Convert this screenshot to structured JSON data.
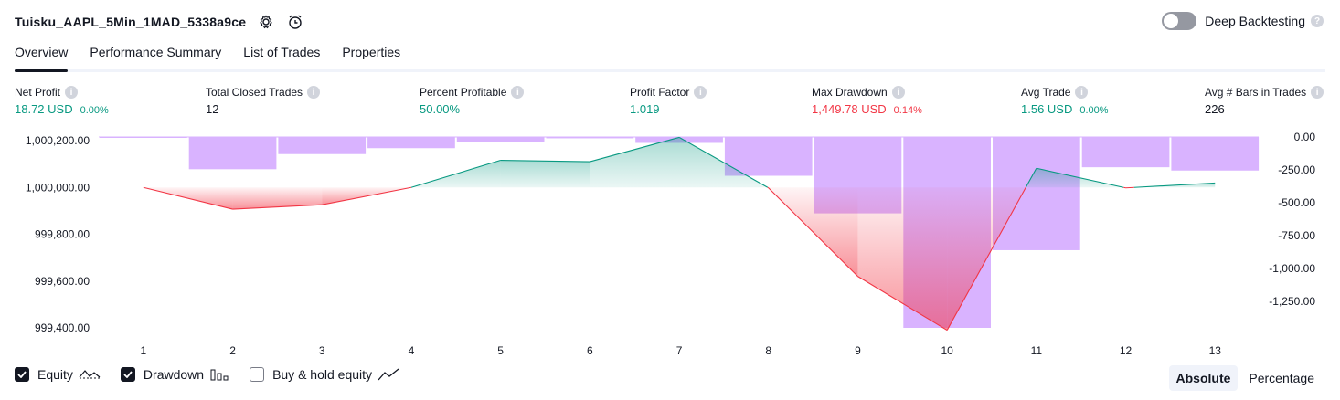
{
  "header": {
    "title": "Tuisku_AAPL_5Min_1MAD_5338a9ce",
    "deep_backtesting_label": "Deep Backtesting",
    "help_glyph": "?"
  },
  "tabs": [
    {
      "label": "Overview",
      "active": true
    },
    {
      "label": "Performance Summary",
      "active": false
    },
    {
      "label": "List of Trades",
      "active": false
    },
    {
      "label": "Properties",
      "active": false
    }
  ],
  "metrics": {
    "net_profit": {
      "label": "Net Profit",
      "value": "18.72 USD",
      "pct": "0.00%"
    },
    "total_closed_trades": {
      "label": "Total Closed Trades",
      "value": "12"
    },
    "percent_profitable": {
      "label": "Percent Profitable",
      "value": "50.00%"
    },
    "profit_factor": {
      "label": "Profit Factor",
      "value": "1.019"
    },
    "max_drawdown": {
      "label": "Max Drawdown",
      "value": "1,449.78 USD",
      "pct": "0.14%"
    },
    "avg_trade": {
      "label": "Avg Trade",
      "value": "1.56 USD",
      "pct": "0.00%"
    },
    "avg_bars": {
      "label": "Avg # Bars in Trades",
      "value": "226"
    }
  },
  "legend": {
    "equity": "Equity",
    "drawdown": "Drawdown",
    "buy_hold": "Buy & hold equity"
  },
  "mode": {
    "absolute": "Absolute",
    "percentage": "Percentage"
  },
  "colors": {
    "profit": "#089981",
    "loss": "#f23645",
    "drawdown_bar": "#d9b3ff",
    "text": "#131722",
    "muted": "#787b86"
  },
  "chart_data": {
    "type": "line",
    "x": [
      1,
      2,
      3,
      4,
      5,
      6,
      7,
      8,
      9,
      10,
      11,
      12,
      13
    ],
    "baseline": 1000000.0,
    "left_axis": {
      "ticks": [
        "1,000,200.00",
        "1,000,000.00",
        "999,800.00",
        "999,600.00",
        "999,400.00"
      ],
      "range": [
        999400,
        1000200
      ]
    },
    "right_axis": {
      "ticks": [
        "0.00",
        "-250.00",
        "-500.00",
        "-750.00",
        "-1,000.00",
        "-1,250.00"
      ],
      "range": [
        -1450,
        0
      ]
    },
    "series": [
      {
        "values": [
          1000000,
          999907,
          999926,
          1000000,
          1000116,
          1000110,
          1000214,
          999998,
          999620,
          999390,
          1000082,
          999998,
          1000019
        ]
      }
    ],
    "drawdown": {
      "values": [
        -5,
        -245,
        -130,
        -85,
        -40,
        -10,
        -45,
        -295,
        -580,
        -1450,
        -860,
        -230,
        -255
      ]
    }
  }
}
